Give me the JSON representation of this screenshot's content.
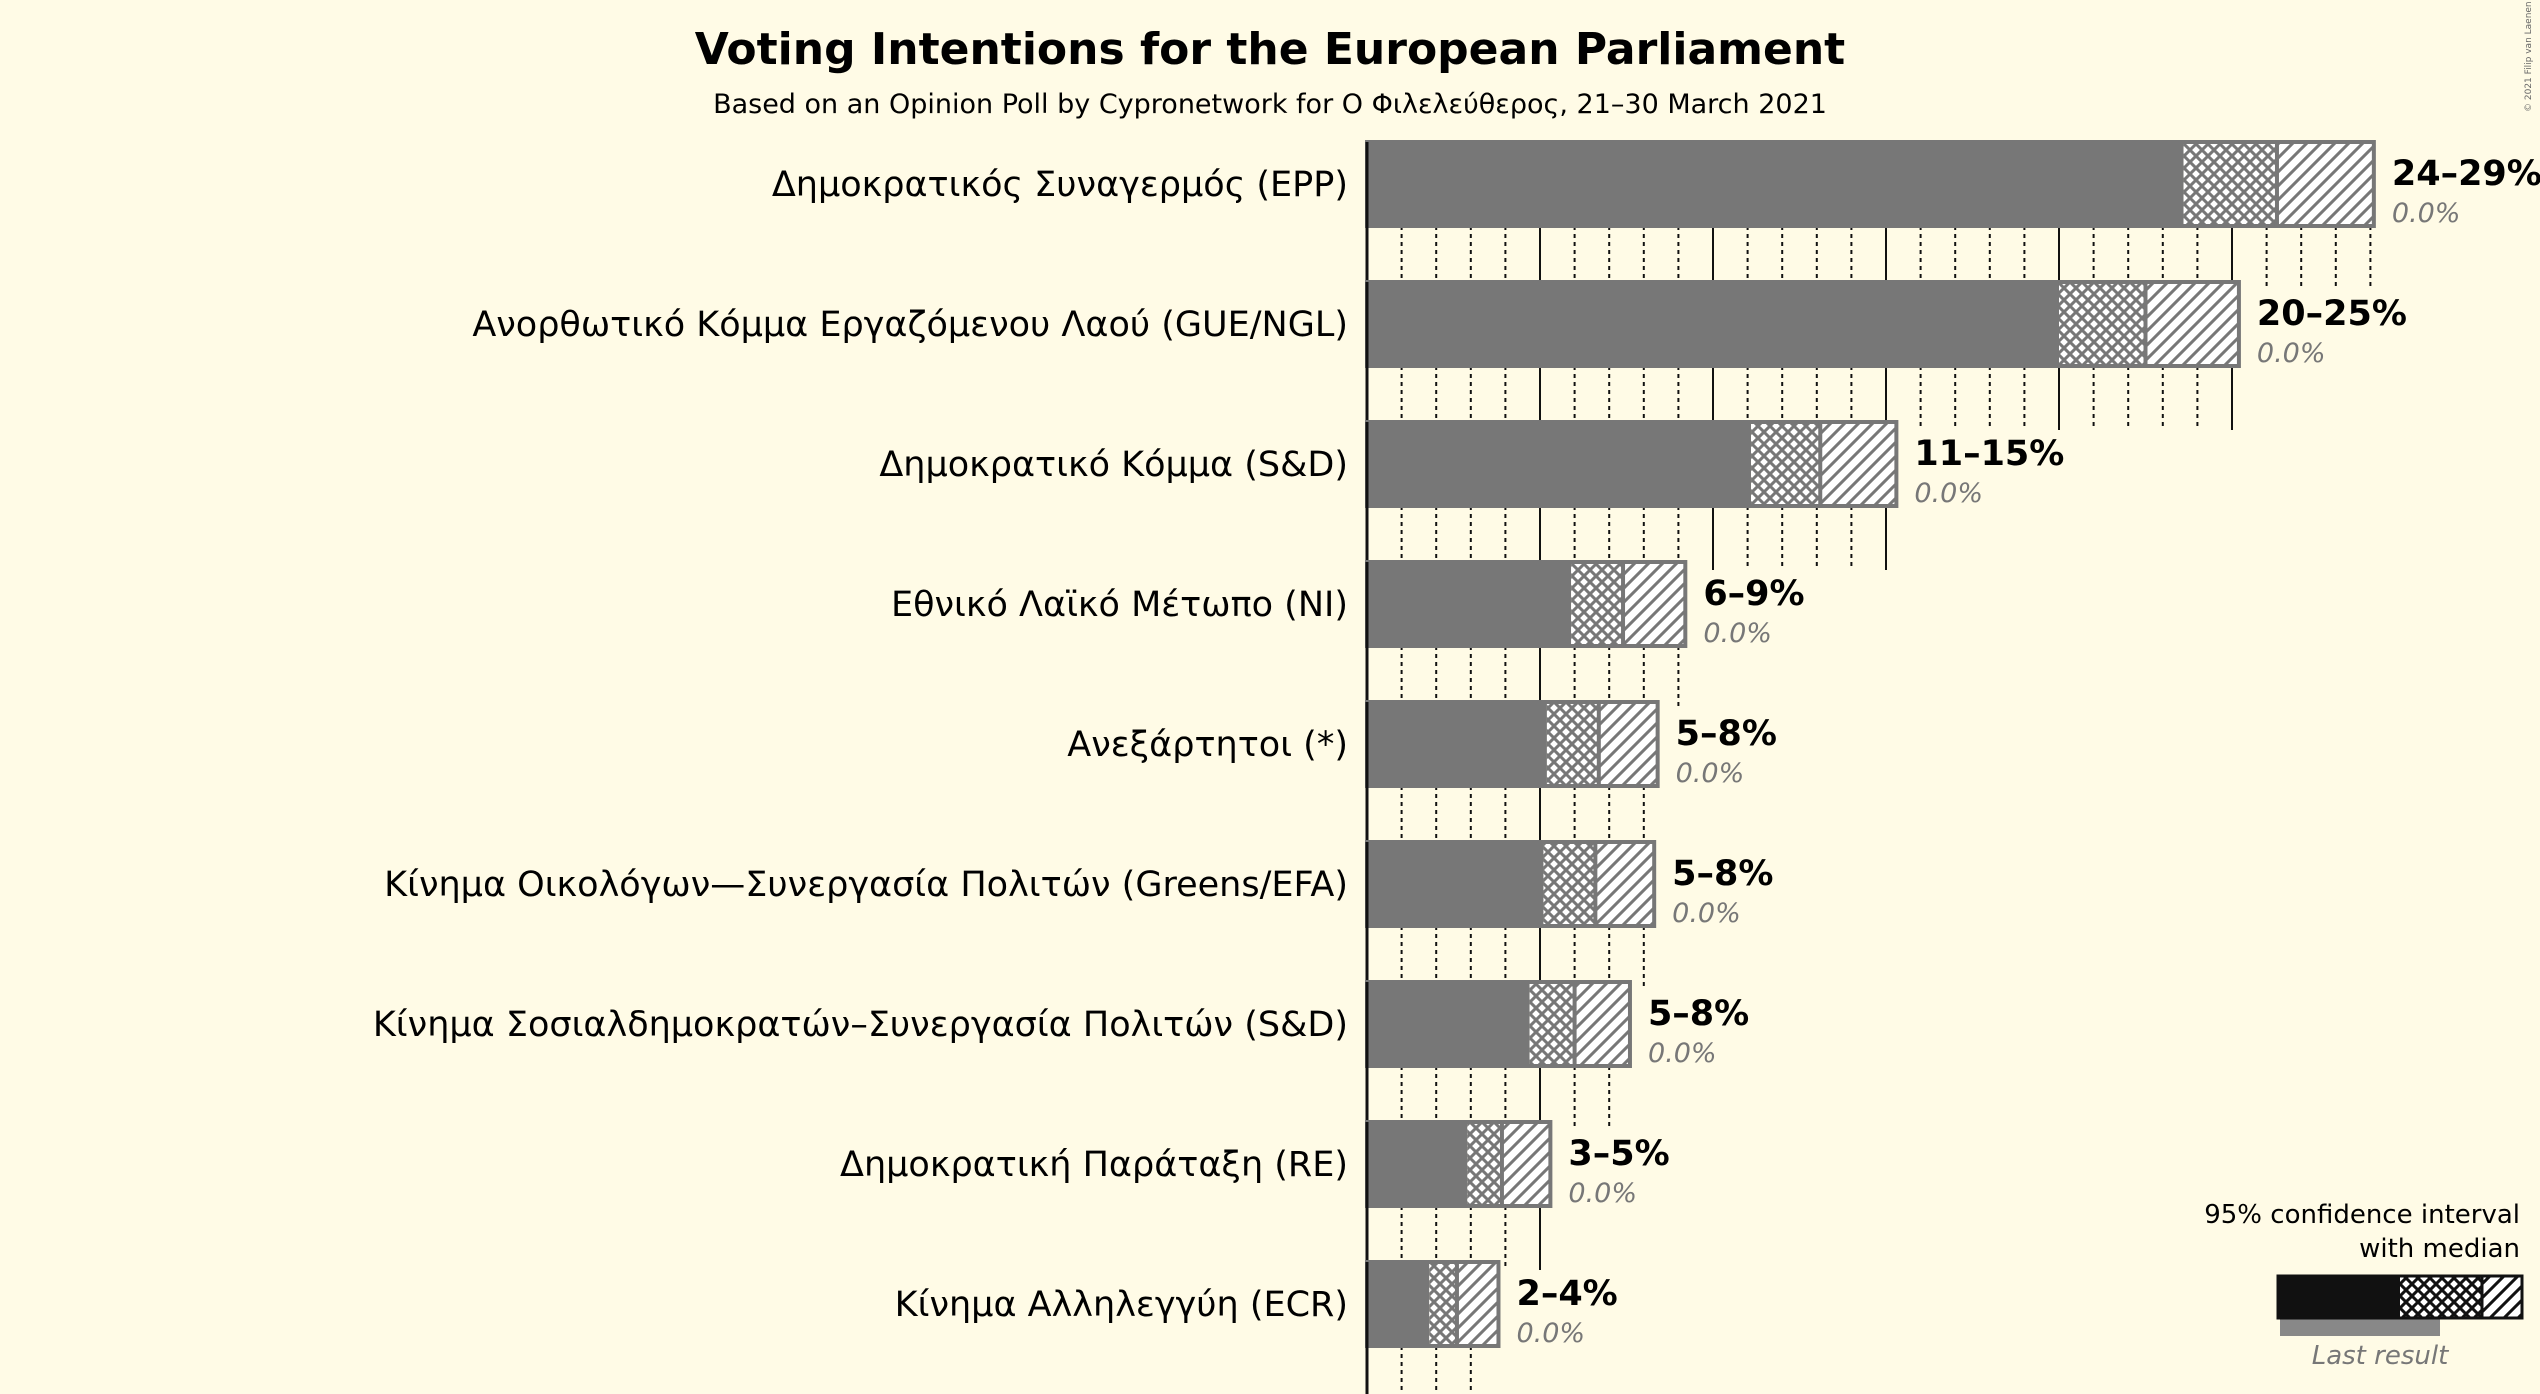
{
  "chart_data": {
    "type": "bar",
    "title": "Voting Intentions for the European Parliament",
    "subtitle": "Based on an Opinion Poll by Cypronetwork for Ο Φιλελεύθερος, 21–30 March 2021",
    "copyright": "© 2021 Filip van Laenen",
    "categories": [
      "Δημοκρατικός Συναγερμός (EPP)",
      "Ανορθωτικό Κόμμα Εργαζόμενου Λαού (GUE/NGL)",
      "Δημοκρατικό Κόμμα (S&D)",
      "Εθνικό Λαϊκό Μέτωπο (NI)",
      "Ανεξάρτητοι (*)",
      "Κίνημα Οικολόγων—Συνεργασία Πολιτών (Greens/EFA)",
      "Κίνημα Σοσιαλδημοκρατών–Συνεργασία Πολιτών (S&D)",
      "Δημοκρατική Παράταξη (RE)",
      "Κίνημα Αλληλεγγύη (ECR)"
    ],
    "ranges": [
      "24–29%",
      "20–25%",
      "11–15%",
      "6–9%",
      "5–8%",
      "5–8%",
      "5–8%",
      "3–5%",
      "2–4%"
    ],
    "last_results": [
      "0.0%",
      "0.0%",
      "0.0%",
      "0.0%",
      "0.0%",
      "0.0%",
      "0.0%",
      "0.0%",
      "0.0%"
    ],
    "ci_low": [
      23.6,
      20.0,
      11.1,
      5.9,
      5.2,
      5.1,
      4.7,
      2.9,
      1.8
    ],
    "median": [
      26.3,
      22.5,
      13.1,
      7.4,
      6.7,
      6.6,
      6.0,
      3.9,
      2.6
    ],
    "ci_high": [
      29.1,
      25.2,
      15.3,
      9.2,
      8.4,
      8.3,
      7.6,
      5.3,
      3.8
    ],
    "last_result_values": [
      0,
      0,
      0,
      0,
      0,
      0,
      0,
      0,
      0
    ],
    "xlim": [
      0,
      30
    ],
    "grid": true,
    "colors": {
      "bar": "#777777",
      "background": "#fffbe6",
      "text": "#111111",
      "legend_bar": "#111111"
    },
    "legend": {
      "title_line1": "95% confidence interval",
      "title_line2": "with median",
      "last_result_label": "Last result",
      "position": "bottom-right"
    }
  }
}
